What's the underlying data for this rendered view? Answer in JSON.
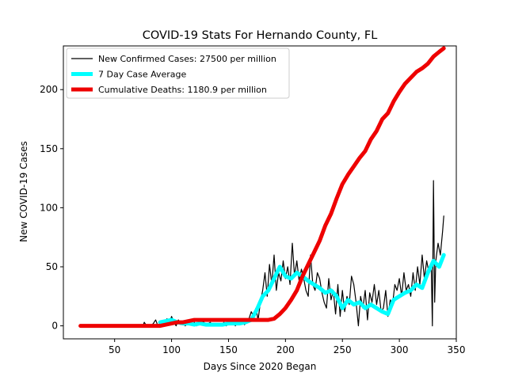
{
  "chart_data": {
    "type": "line",
    "title": "COVID-19 Stats For Hernando County, FL",
    "xlabel": "Days Since 2020 Began",
    "ylabel": "New COVID-19 Cases",
    "xlim": [
      5,
      350
    ],
    "ylim": [
      -11,
      237
    ],
    "xticks": [
      50,
      100,
      150,
      200,
      250,
      300,
      350
    ],
    "yticks": [
      0,
      50,
      100,
      150,
      200
    ],
    "grid": false,
    "legend_position": "top-left",
    "series": [
      {
        "name": "New Confirmed Cases: 27500 per million",
        "color": "#000000",
        "x": [
          20,
          75,
          76,
          78,
          80,
          82,
          84,
          86,
          88,
          90,
          92,
          94,
          96,
          98,
          100,
          102,
          104,
          106,
          108,
          110,
          112,
          114,
          116,
          118,
          120,
          122,
          124,
          126,
          128,
          130,
          132,
          134,
          136,
          138,
          140,
          142,
          144,
          146,
          148,
          150,
          152,
          154,
          156,
          158,
          160,
          162,
          164,
          166,
          168,
          170,
          172,
          174,
          176,
          178,
          180,
          182,
          184,
          186,
          188,
          190,
          192,
          194,
          196,
          198,
          200,
          202,
          204,
          206,
          208,
          210,
          212,
          214,
          216,
          218,
          220,
          222,
          224,
          226,
          228,
          230,
          232,
          234,
          236,
          238,
          240,
          242,
          244,
          246,
          248,
          250,
          252,
          254,
          256,
          258,
          260,
          262,
          264,
          266,
          268,
          270,
          272,
          274,
          276,
          278,
          280,
          282,
          284,
          286,
          288,
          290,
          292,
          294,
          296,
          298,
          300,
          302,
          304,
          306,
          308,
          310,
          312,
          314,
          316,
          318,
          320,
          322,
          324,
          326,
          328,
          329,
          330,
          331,
          332,
          334,
          336,
          338,
          339
        ],
        "y": [
          0,
          0,
          3,
          0,
          1,
          0,
          2,
          5,
          0,
          3,
          1,
          4,
          6,
          2,
          8,
          3,
          0,
          5,
          1,
          3,
          0,
          2,
          4,
          1,
          3,
          0,
          2,
          1,
          4,
          0,
          2,
          3,
          0,
          1,
          2,
          0,
          1,
          3,
          0,
          2,
          1,
          4,
          0,
          3,
          2,
          5,
          1,
          3,
          6,
          12,
          8,
          15,
          5,
          20,
          30,
          45,
          25,
          52,
          35,
          60,
          30,
          45,
          38,
          55,
          40,
          50,
          35,
          70,
          42,
          55,
          38,
          48,
          40,
          30,
          25,
          60,
          35,
          30,
          45,
          40,
          28,
          20,
          15,
          40,
          22,
          30,
          10,
          35,
          8,
          30,
          12,
          25,
          18,
          42,
          35,
          20,
          0,
          25,
          15,
          30,
          5,
          28,
          20,
          35,
          18,
          30,
          12,
          15,
          30,
          8,
          22,
          18,
          35,
          30,
          40,
          25,
          45,
          30,
          35,
          25,
          45,
          30,
          50,
          35,
          60,
          40,
          55,
          45,
          50,
          0,
          123,
          20,
          55,
          70,
          60,
          80,
          93
        ]
      },
      {
        "name": "7 Day Case Average",
        "color": "#00ffff",
        "x": [
          90,
          95,
          100,
          105,
          110,
          115,
          120,
          125,
          130,
          135,
          140,
          145,
          150,
          155,
          160,
          165,
          170,
          175,
          180,
          185,
          190,
          195,
          200,
          205,
          210,
          215,
          220,
          225,
          230,
          235,
          240,
          245,
          250,
          255,
          260,
          265,
          270,
          275,
          280,
          285,
          290,
          295,
          300,
          305,
          310,
          315,
          320,
          325,
          330,
          335,
          339
        ],
        "y": [
          3,
          4,
          5,
          3,
          2,
          2,
          1,
          2,
          1,
          1,
          1,
          1,
          2,
          2,
          2,
          3,
          5,
          14,
          25,
          30,
          40,
          50,
          42,
          40,
          45,
          42,
          38,
          35,
          32,
          28,
          30,
          25,
          15,
          22,
          18,
          20,
          15,
          18,
          15,
          12,
          10,
          22,
          25,
          28,
          30,
          35,
          32,
          45,
          55,
          50,
          60
        ]
      },
      {
        "name": "Cumulative Deaths: 1180.9 per million",
        "color": "#ee0000",
        "x": [
          20,
          90,
          95,
          100,
          105,
          110,
          115,
          120,
          125,
          130,
          135,
          140,
          145,
          150,
          155,
          160,
          165,
          170,
          175,
          180,
          185,
          190,
          195,
          200,
          205,
          210,
          215,
          220,
          225,
          230,
          235,
          240,
          245,
          250,
          255,
          260,
          265,
          270,
          275,
          280,
          285,
          290,
          295,
          300,
          305,
          310,
          315,
          320,
          325,
          330,
          335,
          339
        ],
        "y": [
          0,
          0,
          1,
          2,
          3,
          3,
          4,
          5,
          5,
          5,
          5,
          5,
          5,
          5,
          5,
          5,
          5,
          5,
          5,
          5,
          5,
          6,
          10,
          15,
          22,
          30,
          42,
          52,
          62,
          72,
          85,
          95,
          108,
          120,
          128,
          135,
          142,
          148,
          158,
          165,
          175,
          180,
          190,
          198,
          205,
          210,
          215,
          218,
          222,
          228,
          232,
          235
        ]
      }
    ]
  }
}
